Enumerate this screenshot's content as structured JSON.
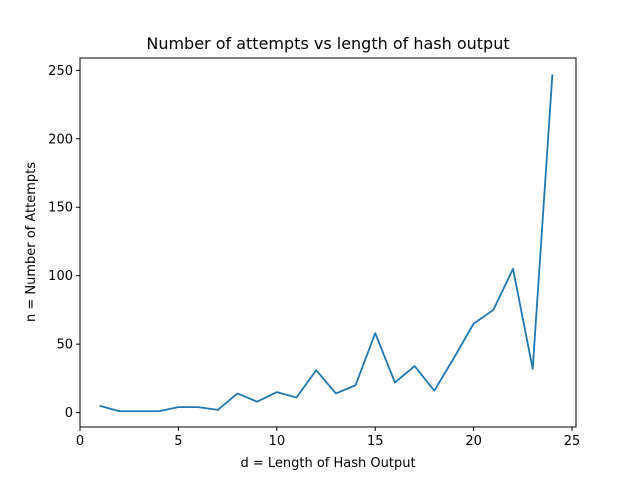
{
  "chart_data": {
    "type": "line",
    "title": "Number of attempts vs length of hash output",
    "xlabel": "d = Length of Hash Output",
    "ylabel": "n = Number of Attempts",
    "xlim": [
      0,
      25.2
    ],
    "ylim": [
      -10.5,
      259
    ],
    "xticks": [
      0,
      5,
      10,
      15,
      20,
      25
    ],
    "yticks": [
      0,
      50,
      100,
      150,
      200,
      250
    ],
    "grid": false,
    "series": [
      {
        "color": "#1f77b4",
        "x": [
          1,
          2,
          3,
          4,
          5,
          6,
          7,
          8,
          9,
          10,
          11,
          12,
          13,
          14,
          15,
          16,
          17,
          18,
          19,
          20,
          21,
          22,
          23,
          24
        ],
        "y": [
          5,
          1,
          1,
          1,
          4,
          4,
          2,
          14,
          8,
          15,
          11,
          31,
          14,
          20,
          58,
          22,
          34,
          16,
          40,
          65,
          75,
          105,
          32,
          247
        ]
      }
    ]
  }
}
